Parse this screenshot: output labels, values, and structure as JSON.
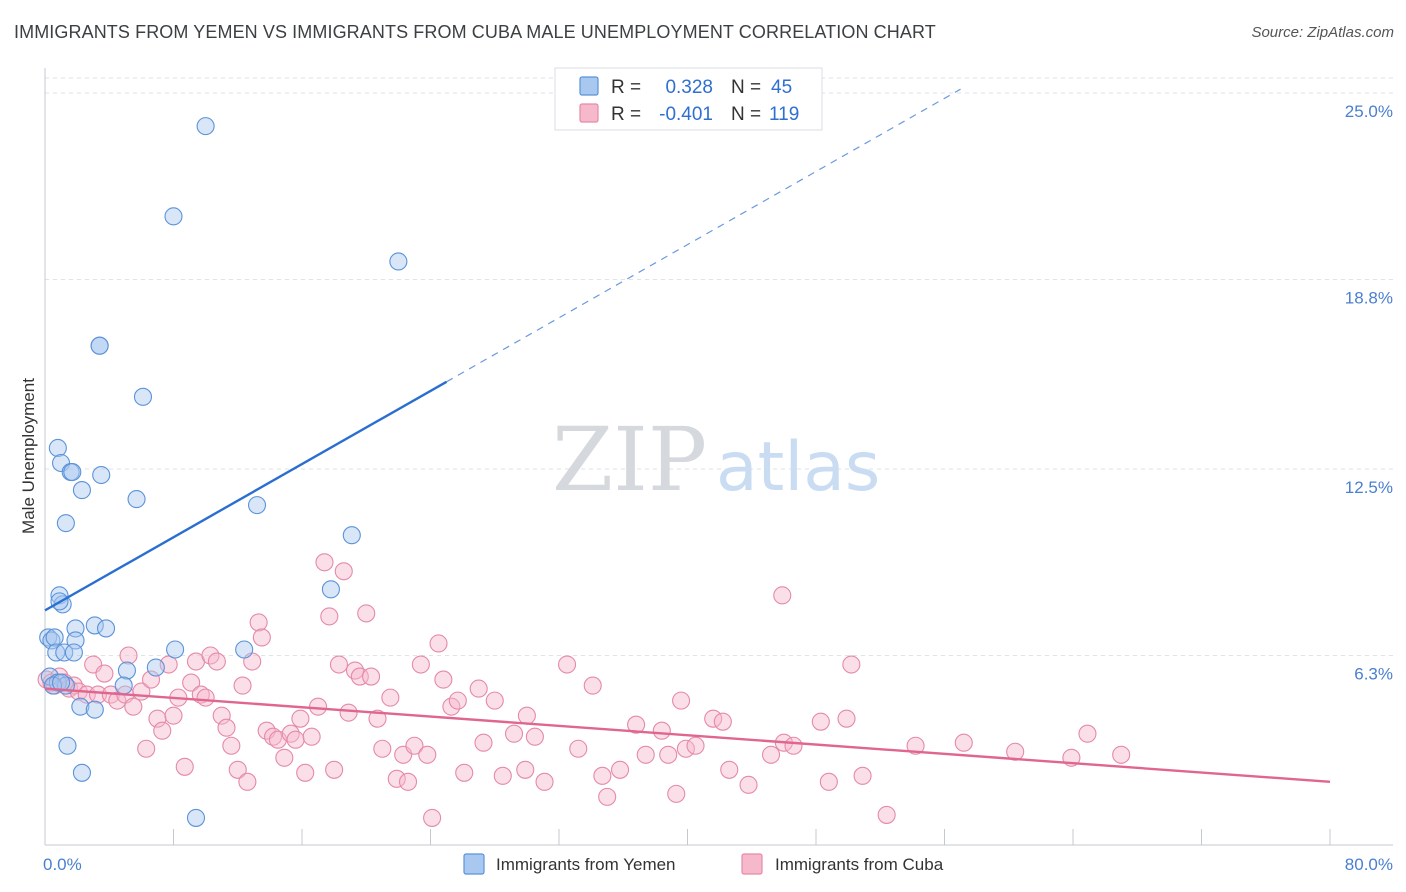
{
  "header": {
    "title": "IMMIGRANTS FROM YEMEN VS IMMIGRANTS FROM CUBA MALE UNEMPLOYMENT CORRELATION CHART",
    "source": "Source: ZipAtlas.com"
  },
  "colors": {
    "yemen_fill": "#a9c8f0",
    "yemen_stroke": "#5b93d9",
    "yemen_line": "#2a6fd0",
    "cuba_fill": "#f6b9cc",
    "cuba_stroke": "#e58aa7",
    "cuba_line": "#e0668f",
    "grid": "#dde3ea",
    "tick_text": "#4a7fd0"
  },
  "watermark": {
    "zip": "ZIP",
    "atlas": "atlas"
  },
  "chart_data": {
    "type": "scatter",
    "title": "IMMIGRANTS FROM YEMEN VS IMMIGRANTS FROM CUBA MALE UNEMPLOYMENT CORRELATION CHART",
    "xlabel": "",
    "ylabel": "Male Unemployment",
    "xlim": [
      0,
      80
    ],
    "ylim": [
      0,
      25.5
    ],
    "x_tick_labels": [
      "0.0%",
      "80.0%"
    ],
    "y_ticks": [
      {
        "value": 6.3,
        "label": "6.3%"
      },
      {
        "value": 12.5,
        "label": "12.5%"
      },
      {
        "value": 18.8,
        "label": "18.8%"
      },
      {
        "value": 25.0,
        "label": "25.0%"
      }
    ],
    "legend": {
      "position": "bottom-center",
      "entries": [
        "Immigrants from Yemen",
        "Immigrants from Cuba"
      ]
    },
    "stats": [
      {
        "series": "Immigrants from Yemen",
        "r_label": "R =",
        "r": "0.328",
        "n_label": "N =",
        "n": "45"
      },
      {
        "series": "Immigrants from Cuba",
        "r_label": "R =",
        "r": "-0.401",
        "n_label": "N =",
        "n": "119"
      }
    ],
    "series": [
      {
        "name": "Immigrants from Yemen",
        "trend": {
          "x0": 0,
          "y0": 7.8,
          "x1": 25,
          "y1": 15.4,
          "dashed_to_x": 57
        },
        "points": [
          [
            10.0,
            23.9
          ],
          [
            8.0,
            20.9
          ],
          [
            22.0,
            19.4
          ],
          [
            3.4,
            16.6
          ],
          [
            3.4,
            16.6
          ],
          [
            6.1,
            14.9
          ],
          [
            0.8,
            13.2
          ],
          [
            1.0,
            12.7
          ],
          [
            1.6,
            12.4
          ],
          [
            3.5,
            12.3
          ],
          [
            1.7,
            12.4
          ],
          [
            2.3,
            11.8
          ],
          [
            5.7,
            11.5
          ],
          [
            13.2,
            11.3
          ],
          [
            1.3,
            10.7
          ],
          [
            19.1,
            10.3
          ],
          [
            17.8,
            8.5
          ],
          [
            0.9,
            8.3
          ],
          [
            1.1,
            8.0
          ],
          [
            0.9,
            8.1
          ],
          [
            3.1,
            7.3
          ],
          [
            1.9,
            7.2
          ],
          [
            3.8,
            7.2
          ],
          [
            0.2,
            6.9
          ],
          [
            0.4,
            6.8
          ],
          [
            0.6,
            6.9
          ],
          [
            1.9,
            6.8
          ],
          [
            8.1,
            6.5
          ],
          [
            12.4,
            6.5
          ],
          [
            0.7,
            6.4
          ],
          [
            1.2,
            6.4
          ],
          [
            1.8,
            6.4
          ],
          [
            5.1,
            5.8
          ],
          [
            6.9,
            5.9
          ],
          [
            0.3,
            5.6
          ],
          [
            0.8,
            5.4
          ],
          [
            1.3,
            5.3
          ],
          [
            4.9,
            5.3
          ],
          [
            0.5,
            5.3
          ],
          [
            2.2,
            4.6
          ],
          [
            3.1,
            4.5
          ],
          [
            1.4,
            3.3
          ],
          [
            2.3,
            2.4
          ],
          [
            9.4,
            0.9
          ],
          [
            1.0,
            5.4
          ]
        ]
      },
      {
        "name": "Immigrants from Cuba",
        "trend": {
          "x0": 0,
          "y0": 5.2,
          "x1": 80,
          "y1": 2.1
        },
        "points": [
          [
            0.1,
            5.5
          ],
          [
            0.4,
            5.4
          ],
          [
            0.6,
            5.3
          ],
          [
            0.9,
            5.6
          ],
          [
            1.2,
            5.4
          ],
          [
            1.5,
            5.2
          ],
          [
            1.8,
            5.3
          ],
          [
            2.1,
            5.1
          ],
          [
            2.6,
            5.0
          ],
          [
            3.0,
            6.0
          ],
          [
            3.3,
            5.0
          ],
          [
            3.7,
            5.7
          ],
          [
            4.1,
            5.0
          ],
          [
            4.5,
            4.8
          ],
          [
            5.0,
            5.0
          ],
          [
            5.2,
            6.3
          ],
          [
            5.5,
            4.6
          ],
          [
            6.0,
            5.1
          ],
          [
            6.3,
            3.2
          ],
          [
            6.6,
            5.5
          ],
          [
            7.0,
            4.2
          ],
          [
            7.3,
            3.8
          ],
          [
            7.7,
            6.0
          ],
          [
            8.0,
            4.3
          ],
          [
            8.3,
            4.9
          ],
          [
            8.7,
            2.6
          ],
          [
            9.1,
            5.4
          ],
          [
            9.4,
            6.1
          ],
          [
            9.7,
            5.0
          ],
          [
            10.0,
            4.9
          ],
          [
            10.3,
            6.3
          ],
          [
            10.7,
            6.1
          ],
          [
            11.0,
            4.3
          ],
          [
            11.3,
            3.9
          ],
          [
            11.6,
            3.3
          ],
          [
            12.0,
            2.5
          ],
          [
            12.3,
            5.3
          ],
          [
            12.6,
            2.1
          ],
          [
            12.9,
            6.1
          ],
          [
            13.3,
            7.4
          ],
          [
            13.5,
            6.9
          ],
          [
            13.8,
            3.8
          ],
          [
            14.2,
            3.6
          ],
          [
            14.5,
            3.5
          ],
          [
            14.9,
            2.9
          ],
          [
            15.3,
            3.7
          ],
          [
            15.6,
            3.5
          ],
          [
            15.9,
            4.2
          ],
          [
            16.2,
            2.4
          ],
          [
            16.6,
            3.6
          ],
          [
            17.0,
            4.6
          ],
          [
            17.4,
            9.4
          ],
          [
            17.7,
            7.6
          ],
          [
            18.0,
            2.5
          ],
          [
            18.3,
            6.0
          ],
          [
            18.6,
            9.1
          ],
          [
            18.9,
            4.4
          ],
          [
            19.3,
            5.8
          ],
          [
            19.6,
            5.6
          ],
          [
            20.0,
            7.7
          ],
          [
            20.3,
            5.6
          ],
          [
            20.7,
            4.2
          ],
          [
            21.0,
            3.2
          ],
          [
            21.5,
            4.9
          ],
          [
            21.9,
            2.2
          ],
          [
            22.3,
            3.0
          ],
          [
            22.6,
            2.1
          ],
          [
            23.0,
            3.3
          ],
          [
            23.4,
            6.0
          ],
          [
            23.8,
            3.0
          ],
          [
            24.1,
            0.9
          ],
          [
            24.5,
            6.7
          ],
          [
            24.8,
            5.5
          ],
          [
            25.3,
            4.6
          ],
          [
            25.7,
            4.8
          ],
          [
            26.1,
            2.4
          ],
          [
            27.0,
            5.2
          ],
          [
            27.3,
            3.4
          ],
          [
            28.0,
            4.8
          ],
          [
            28.5,
            2.3
          ],
          [
            29.2,
            3.7
          ],
          [
            29.9,
            2.5
          ],
          [
            30.5,
            3.6
          ],
          [
            30.0,
            4.3
          ],
          [
            31.1,
            2.1
          ],
          [
            32.5,
            6.0
          ],
          [
            33.2,
            3.2
          ],
          [
            34.1,
            5.3
          ],
          [
            34.7,
            2.3
          ],
          [
            35.0,
            1.6
          ],
          [
            35.8,
            2.5
          ],
          [
            36.8,
            4.0
          ],
          [
            37.4,
            3.0
          ],
          [
            38.4,
            3.8
          ],
          [
            38.8,
            3.0
          ],
          [
            39.3,
            1.7
          ],
          [
            39.6,
            4.8
          ],
          [
            39.9,
            3.2
          ],
          [
            40.5,
            3.3
          ],
          [
            41.6,
            4.2
          ],
          [
            42.2,
            4.1
          ],
          [
            42.6,
            2.5
          ],
          [
            43.8,
            2.0
          ],
          [
            45.2,
            3.0
          ],
          [
            45.9,
            8.3
          ],
          [
            46.0,
            3.4
          ],
          [
            46.6,
            3.3
          ],
          [
            48.3,
            4.1
          ],
          [
            48.8,
            2.1
          ],
          [
            49.9,
            4.2
          ],
          [
            50.2,
            6.0
          ],
          [
            50.9,
            2.3
          ],
          [
            52.4,
            1.0
          ],
          [
            54.2,
            3.3
          ],
          [
            57.2,
            3.4
          ],
          [
            60.4,
            3.1
          ],
          [
            63.9,
            2.9
          ],
          [
            64.9,
            3.7
          ],
          [
            67.0,
            3.0
          ]
        ]
      }
    ]
  }
}
